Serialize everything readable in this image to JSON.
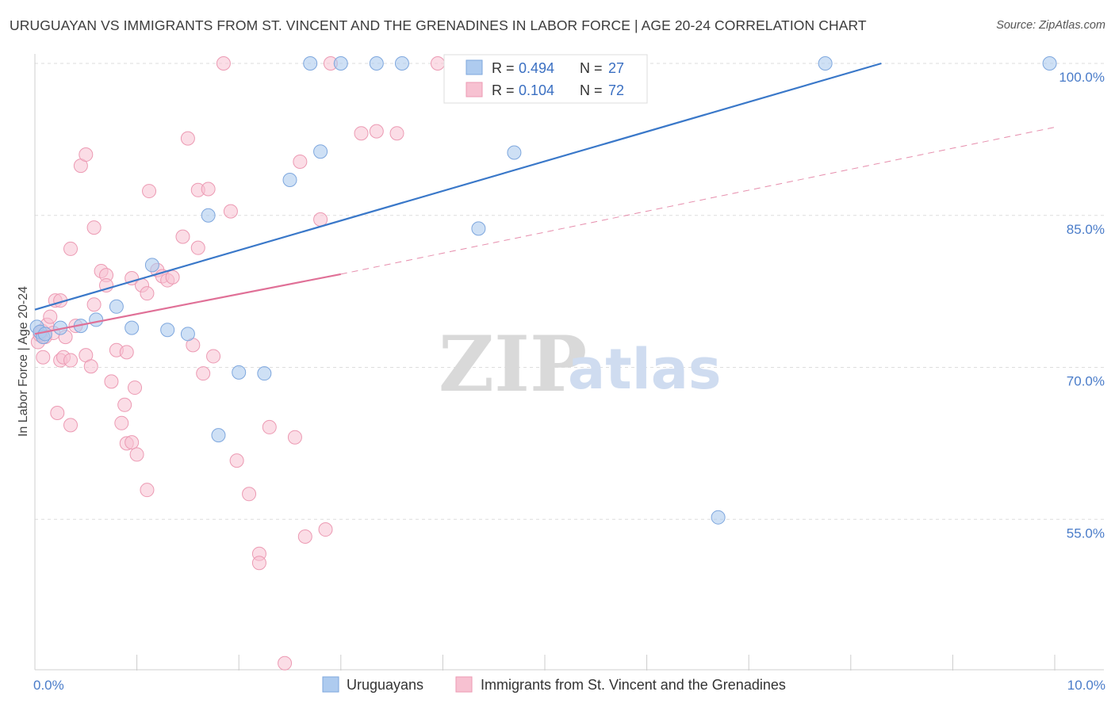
{
  "title": "URUGUAYAN VS IMMIGRANTS FROM ST. VINCENT AND THE GRENADINES IN LABOR FORCE | AGE 20-24 CORRELATION CHART",
  "source": "Source: ZipAtlas.com",
  "watermark": {
    "zip": "ZIP",
    "atlas": "atlas"
  },
  "colors": {
    "blue_fill": "#aecbef",
    "blue_stroke": "#7ea7de",
    "blue_line": "#3a78c9",
    "pink_fill": "#f7c1d1",
    "pink_stroke": "#ec9ab3",
    "pink_line": "#e07097",
    "grid": "#dddddd",
    "tick_text": "#4a7cc9"
  },
  "legend": {
    "rows": [
      {
        "r_label": "R =",
        "r_value": "0.494",
        "n_label": "N =",
        "n_value": "27",
        "series": "blue"
      },
      {
        "r_label": "R =",
        "r_value": "0.104",
        "n_label": "N =",
        "n_value": "72",
        "series": "pink"
      }
    ]
  },
  "chart_data": {
    "type": "scatter",
    "title": "URUGUAYAN VS IMMIGRANTS FROM ST. VINCENT AND THE GRENADINES IN LABOR FORCE | AGE 20-24 CORRELATION CHART",
    "xlabel": "",
    "ylabel": "In Labor Force | Age 20-24",
    "xlim": [
      0,
      10
    ],
    "ylim": [
      40,
      100
    ],
    "x_tick_labels": [
      "0.0%",
      "10.0%"
    ],
    "x_tick_values": [
      0,
      10
    ],
    "y_tick_labels": [
      "55.0%",
      "70.0%",
      "85.0%",
      "100.0%"
    ],
    "y_tick_values": [
      55,
      70,
      85,
      100
    ],
    "grid": true,
    "legend_position": "bottom",
    "series": [
      {
        "name": "Uruguayans",
        "color": "blue",
        "r": 0.494,
        "n": 27,
        "points": [
          [
            0.02,
            74.0
          ],
          [
            0.05,
            73.5
          ],
          [
            0.08,
            73.0
          ],
          [
            0.1,
            73.3
          ],
          [
            0.25,
            73.9
          ],
          [
            0.45,
            74.1
          ],
          [
            0.6,
            74.7
          ],
          [
            0.8,
            76.0
          ],
          [
            0.95,
            73.9
          ],
          [
            1.3,
            73.7
          ],
          [
            1.15,
            80.1
          ],
          [
            1.5,
            73.3
          ],
          [
            1.7,
            85.0
          ],
          [
            2.0,
            69.5
          ],
          [
            2.25,
            69.4
          ],
          [
            1.8,
            63.3
          ],
          [
            2.5,
            88.5
          ],
          [
            2.8,
            91.3
          ],
          [
            2.7,
            100.0
          ],
          [
            3.0,
            100.0
          ],
          [
            3.35,
            100.0
          ],
          [
            3.6,
            100.0
          ],
          [
            4.35,
            83.7
          ],
          [
            4.7,
            91.2
          ],
          [
            6.7,
            55.2
          ],
          [
            7.75,
            100.0
          ],
          [
            9.95,
            100.0
          ]
        ],
        "trend": {
          "x0": 0,
          "y0": 75.7,
          "x1": 8.3,
          "y1": 100.0,
          "style": "solid"
        }
      },
      {
        "name": "Immigrants from St. Vincent and the Grenadines",
        "color": "pink",
        "r": 0.104,
        "n": 72,
        "points": [
          [
            0.03,
            72.5
          ],
          [
            0.05,
            73.2
          ],
          [
            0.06,
            73.4
          ],
          [
            0.07,
            73.6
          ],
          [
            0.08,
            71.0
          ],
          [
            0.1,
            73.0
          ],
          [
            0.12,
            74.2
          ],
          [
            0.15,
            75.0
          ],
          [
            0.18,
            73.4
          ],
          [
            0.2,
            76.6
          ],
          [
            0.22,
            65.5
          ],
          [
            0.25,
            76.6
          ],
          [
            0.25,
            70.7
          ],
          [
            0.28,
            71.0
          ],
          [
            0.3,
            73.0
          ],
          [
            0.35,
            81.7
          ],
          [
            0.35,
            70.7
          ],
          [
            0.35,
            64.3
          ],
          [
            0.4,
            74.1
          ],
          [
            0.45,
            89.9
          ],
          [
            0.5,
            91.0
          ],
          [
            0.5,
            71.2
          ],
          [
            0.55,
            70.1
          ],
          [
            0.58,
            76.2
          ],
          [
            0.58,
            83.8
          ],
          [
            0.65,
            79.5
          ],
          [
            0.7,
            79.1
          ],
          [
            0.7,
            78.1
          ],
          [
            0.75,
            68.6
          ],
          [
            0.8,
            71.7
          ],
          [
            0.85,
            64.5
          ],
          [
            0.88,
            66.3
          ],
          [
            0.9,
            71.5
          ],
          [
            0.9,
            62.5
          ],
          [
            0.95,
            78.8
          ],
          [
            0.95,
            62.6
          ],
          [
            0.98,
            68.0
          ],
          [
            1.0,
            61.4
          ],
          [
            1.05,
            78.1
          ],
          [
            1.1,
            77.3
          ],
          [
            1.1,
            57.9
          ],
          [
            1.12,
            87.4
          ],
          [
            1.2,
            79.6
          ],
          [
            1.25,
            79.0
          ],
          [
            1.3,
            78.6
          ],
          [
            1.35,
            78.9
          ],
          [
            1.45,
            82.9
          ],
          [
            1.5,
            92.6
          ],
          [
            1.55,
            72.2
          ],
          [
            1.6,
            87.5
          ],
          [
            1.6,
            81.8
          ],
          [
            1.65,
            69.4
          ],
          [
            1.7,
            87.6
          ],
          [
            1.75,
            71.1
          ],
          [
            1.85,
            100.0
          ],
          [
            1.92,
            85.4
          ],
          [
            1.98,
            60.8
          ],
          [
            2.1,
            57.5
          ],
          [
            2.2,
            51.6
          ],
          [
            2.2,
            50.7
          ],
          [
            2.3,
            64.1
          ],
          [
            2.45,
            40.8
          ],
          [
            2.55,
            63.1
          ],
          [
            2.6,
            90.3
          ],
          [
            2.65,
            53.3
          ],
          [
            2.8,
            84.6
          ],
          [
            2.85,
            54.0
          ],
          [
            2.9,
            100.0
          ],
          [
            3.2,
            93.1
          ],
          [
            3.35,
            93.3
          ],
          [
            3.55,
            93.1
          ],
          [
            3.95,
            100.0
          ]
        ],
        "trend": {
          "x0": 0,
          "y0": 73.3,
          "x1": 3.0,
          "y1": 79.2,
          "style": "solid"
        },
        "trend_extension": {
          "x0": 3.0,
          "y0": 79.2,
          "x1": 10.0,
          "y1": 93.7,
          "style": "dashed"
        }
      }
    ]
  },
  "bottom_legend": {
    "items": [
      {
        "label": "Uruguayans",
        "series": "blue"
      },
      {
        "label": "Immigrants from St. Vincent and the Grenadines",
        "series": "pink"
      }
    ]
  }
}
